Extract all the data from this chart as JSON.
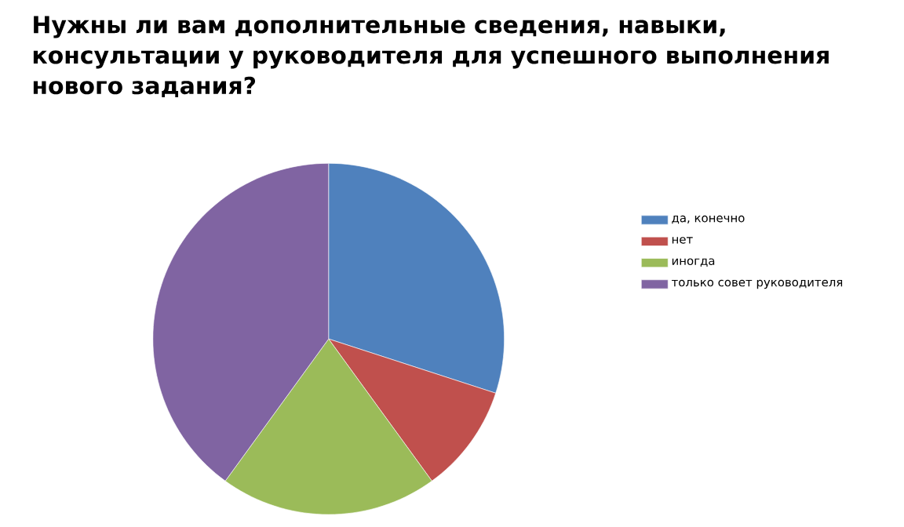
{
  "chart_data": {
    "type": "pie",
    "title": "Нужны ли вам дополнительные сведения, навыки, консультации у руководителя для успешного выполнения нового задания?",
    "categories": [
      "да, конечно",
      "нет",
      "иногда",
      "только совет руководителя"
    ],
    "values": [
      30,
      10,
      20,
      40
    ],
    "colors": [
      "#4f81bd",
      "#c0504d",
      "#9bbb59",
      "#8064a2"
    ],
    "legend": "right"
  }
}
